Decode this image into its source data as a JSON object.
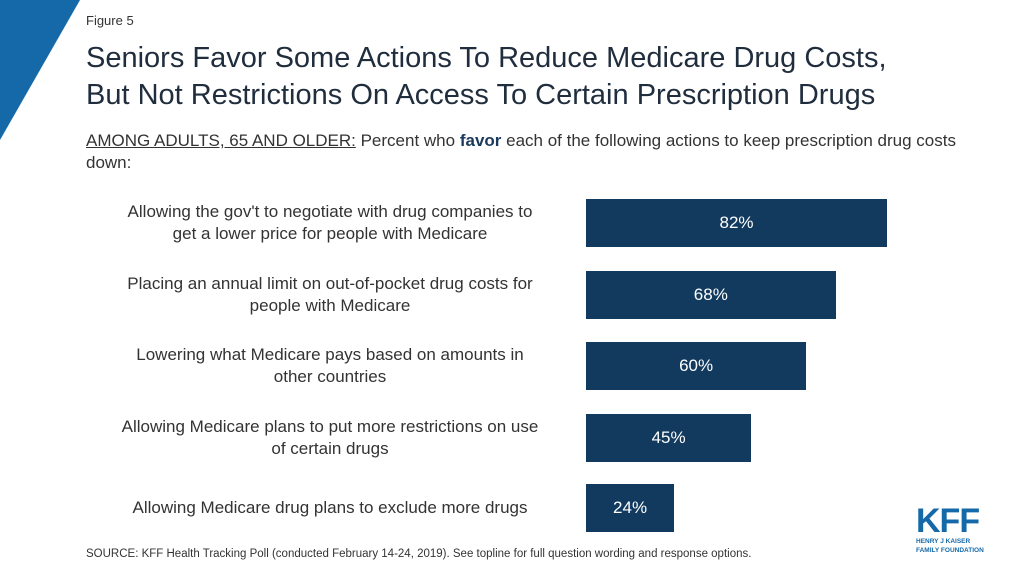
{
  "figure_label": "Figure 5",
  "title_line1": "Seniors Favor Some Actions To Reduce Medicare Drug Costs,",
  "title_line2": "But Not Restrictions On Access To Certain Prescription Drugs",
  "subtitle": {
    "prefix": "AMONG ADULTS, 65 AND OLDER:",
    "text_before": " Percent who ",
    "emphasis": "favor",
    "text_after": " each of the following actions to keep prescription drug costs down:"
  },
  "source": "SOURCE: KFF Health Tracking Poll (conducted February 14-24, 2019). See topline for full question wording and response options.",
  "logo": {
    "main": "KFF",
    "line1": "HENRY J KAISER",
    "line2": "FAMILY FOUNDATION"
  },
  "colors": {
    "bar": "#123a5e",
    "logo": "#1569a8",
    "corner": "#1569a8"
  },
  "chart_data": {
    "type": "bar",
    "orientation": "horizontal",
    "categories": [
      [
        "Allowing the gov't to negotiate with drug companies to",
        "get a lower price for people with Medicare"
      ],
      [
        "Placing an annual limit on out-of-pocket drug costs for",
        "people with Medicare"
      ],
      [
        "Lowering what Medicare pays based on amounts in",
        "other countries"
      ],
      [
        "Allowing Medicare plans to put more restrictions on use",
        "of certain drugs"
      ],
      [
        "Allowing Medicare drug plans to exclude more drugs"
      ]
    ],
    "values": [
      82,
      68,
      60,
      45,
      24
    ],
    "value_labels": [
      "82%",
      "68%",
      "60%",
      "45%",
      "24%"
    ],
    "xlim": [
      0,
      100
    ],
    "grid": false
  }
}
